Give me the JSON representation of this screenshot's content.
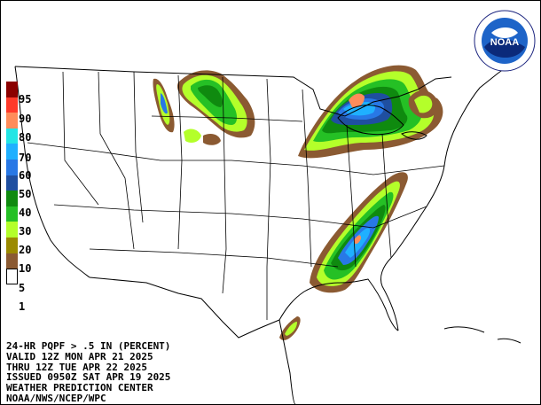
{
  "product": {
    "line1": "24-HR PQPF > .5 IN (PERCENT)",
    "line2": "VALID 12Z MON APR 21 2025",
    "line3": "THRU 12Z TUE APR 22 2025",
    "line4": "ISSUED 0950Z SAT APR 19 2025",
    "line5": "WEATHER PREDICTION CENTER",
    "line6": "NOAA/NWS/NCEP/WPC"
  },
  "logo": {
    "text": "NOAA"
  },
  "legend": [
    {
      "label": "95",
      "color": "#8b0000"
    },
    {
      "label": "90",
      "color": "#ff3a2a"
    },
    {
      "label": "80",
      "color": "#ff8c5a"
    },
    {
      "label": "70",
      "color": "#22e5e5"
    },
    {
      "label": "60",
      "color": "#1fb0ff"
    },
    {
      "label": "50",
      "color": "#2878e6"
    },
    {
      "label": "40",
      "color": "#1f4fa0"
    },
    {
      "label": "30",
      "color": "#0f8a0f"
    },
    {
      "label": "20",
      "color": "#25c025"
    },
    {
      "label": "10",
      "color": "#b4ff2a"
    },
    {
      "label": "5",
      "color": "#9b8a00"
    },
    {
      "label": "1",
      "color": "#8b5a32"
    },
    {
      "label": "",
      "color": "#ffffff"
    }
  ]
}
